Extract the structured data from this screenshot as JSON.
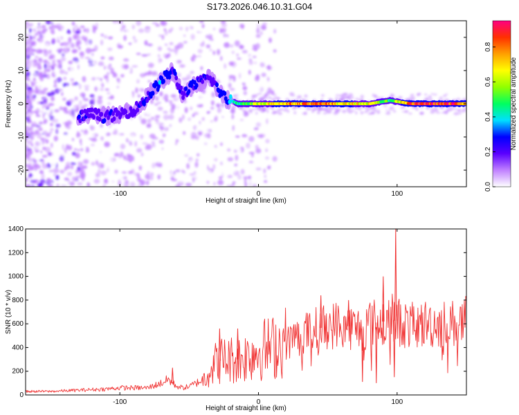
{
  "figure": {
    "title": "S173.2026.046.10.31.G04"
  },
  "chart_data": [
    {
      "type": "heatmap",
      "xlabel": "Height of straight line (km)",
      "ylabel": "Frequency (Hz)",
      "xlim": [
        -168,
        150
      ],
      "ylim": [
        -25,
        25
      ],
      "x_ticks": [
        -100,
        0,
        100
      ],
      "y_ticks": [
        -20,
        -10,
        0,
        10,
        20
      ],
      "colorbar": {
        "label": "Normalized spectral amplitude",
        "range": [
          0.0,
          0.95
        ],
        "ticks": [
          "0.0",
          "0.2",
          "0.4",
          "0.6",
          "0.8"
        ],
        "tick_values": [
          0.0,
          0.2,
          0.4,
          0.6,
          0.8
        ],
        "colors": [
          "#ffffff",
          "#c080ff",
          "#5a00ff",
          "#0000ff",
          "#00e0ff",
          "#00ff60",
          "#90ff00",
          "#ffff00",
          "#ffa000",
          "#ff3000",
          "#ff0080"
        ]
      },
      "ridge": [
        {
          "x": -130,
          "y": -4.0,
          "amp": 0.25
        },
        {
          "x": -120,
          "y": -3.0,
          "amp": 0.2
        },
        {
          "x": -110,
          "y": -4.0,
          "amp": 0.22
        },
        {
          "x": -100,
          "y": -3.0,
          "amp": 0.2
        },
        {
          "x": -90,
          "y": -2.0,
          "amp": 0.18
        },
        {
          "x": -80,
          "y": 2.0,
          "amp": 0.25
        },
        {
          "x": -70,
          "y": 7.0,
          "amp": 0.3
        },
        {
          "x": -62,
          "y": 10.0,
          "amp": 0.25
        },
        {
          "x": -55,
          "y": 3.0,
          "amp": 0.22
        },
        {
          "x": -45,
          "y": 6.0,
          "amp": 0.25
        },
        {
          "x": -35,
          "y": 8.0,
          "amp": 0.2
        },
        {
          "x": -25,
          "y": 2.0,
          "amp": 0.3
        },
        {
          "x": -15,
          "y": 0.0,
          "amp": 0.45
        },
        {
          "x": 0,
          "y": 0.0,
          "amp": 0.6
        },
        {
          "x": 20,
          "y": 0.0,
          "amp": 0.75
        },
        {
          "x": 40,
          "y": 0.0,
          "amp": 0.8
        },
        {
          "x": 60,
          "y": 0.0,
          "amp": 0.7
        },
        {
          "x": 80,
          "y": 0.0,
          "amp": 0.65
        },
        {
          "x": 95,
          "y": 1.0,
          "amp": 0.45
        },
        {
          "x": 110,
          "y": 0.0,
          "amp": 0.85
        },
        {
          "x": 130,
          "y": 0.0,
          "amp": 0.85
        },
        {
          "x": 150,
          "y": 0.0,
          "amp": 0.8
        }
      ]
    },
    {
      "type": "line",
      "xlabel": "Height of straight line (km)",
      "ylabel": "SNR (10 * v/v)",
      "xlim": [
        -168,
        150
      ],
      "ylim": [
        0,
        1400
      ],
      "x_ticks": [
        -100,
        0,
        100
      ],
      "y_ticks": [
        0,
        200,
        400,
        600,
        800,
        1000,
        1200,
        1400
      ],
      "color": "#f03030",
      "series": [
        {
          "x": [
            -168,
            -150,
            -130,
            -110,
            -100,
            -90,
            -80,
            -70,
            -65,
            -60,
            -55,
            -50,
            -45,
            -40,
            -35,
            -30,
            -25,
            -20,
            -15,
            -10,
            -5,
            0,
            10,
            20,
            30,
            40,
            50,
            60,
            70,
            75,
            80,
            90,
            95,
            100,
            110,
            120,
            130,
            140,
            150
          ],
          "y": [
            30,
            30,
            40,
            50,
            60,
            60,
            60,
            100,
            130,
            80,
            60,
            70,
            100,
            130,
            220,
            280,
            300,
            300,
            300,
            320,
            350,
            380,
            400,
            450,
            500,
            550,
            580,
            600,
            560,
            560,
            600,
            620,
            650,
            620,
            580,
            600,
            600,
            600,
            620
          ]
        }
      ],
      "spikes": [
        {
          "x": -62,
          "y": 230
        },
        {
          "x": -28,
          "y": 560
        },
        {
          "x": -15,
          "y": 560
        },
        {
          "x": 45,
          "y": 840
        },
        {
          "x": 65,
          "y": 800
        },
        {
          "x": 75,
          "y": 110
        },
        {
          "x": 85,
          "y": 100
        },
        {
          "x": 90,
          "y": 1000
        },
        {
          "x": 98,
          "y": 150
        },
        {
          "x": 99,
          "y": 1400
        }
      ]
    }
  ]
}
